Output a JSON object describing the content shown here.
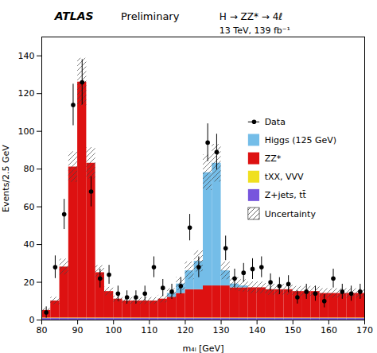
{
  "chart_data": {
    "type": "bar",
    "stacked": true,
    "annotations": [
      "ATLAS",
      "Preliminary",
      "H → ZZ* → 4ℓ",
      "13 TeV, 139 fb⁻¹"
    ],
    "x_label": "m₄ₗ [GeV]",
    "y_label": "Events/2.5 GeV",
    "bins": [
      80,
      82.5,
      85,
      87.5,
      90,
      92.5,
      95,
      97.5,
      100,
      102.5,
      105,
      107.5,
      110,
      112.5,
      115,
      117.5,
      120,
      122.5,
      125,
      127.5,
      130,
      132.5,
      135,
      137.5,
      140,
      142.5,
      145,
      147.5,
      150,
      152.5,
      155,
      157.5,
      160,
      162.5,
      165,
      167.5,
      170
    ],
    "series": [
      {
        "name": "Data",
        "type": "scatter",
        "marker": "circle",
        "x": [
          81.25,
          83.75,
          86.25,
          88.75,
          91.25,
          93.75,
          96.25,
          98.75,
          101.25,
          103.75,
          106.25,
          108.75,
          111.25,
          113.75,
          116.25,
          118.75,
          121.25,
          123.75,
          126.25,
          128.75,
          131.25,
          133.75,
          136.25,
          138.75,
          141.25,
          143.75,
          146.25,
          148.75,
          151.25,
          153.75,
          156.25,
          158.75,
          161.25,
          163.75,
          166.25,
          168.75
        ],
        "values": [
          4,
          28,
          56,
          114,
          126,
          68,
          22,
          24,
          14,
          12,
          12,
          14,
          28,
          17,
          15,
          18,
          49,
          28,
          94,
          89,
          38,
          22,
          25,
          27,
          28,
          20,
          18,
          19,
          12,
          15,
          14,
          10,
          22,
          15,
          14,
          15
        ],
        "errors": [
          3,
          6,
          8,
          11,
          12,
          8,
          5,
          5,
          4,
          3.5,
          3.5,
          4,
          5.5,
          4.5,
          4,
          4.5,
          7,
          5.5,
          10,
          9.5,
          6.5,
          5,
          5,
          5.5,
          5.5,
          4.5,
          4.5,
          4.5,
          3.5,
          4,
          4,
          3.5,
          5,
          4,
          4,
          4
        ]
      },
      {
        "name": "Higgs (125 GeV)",
        "color": "#74bde8",
        "values": [
          0,
          0,
          0,
          0,
          0,
          0,
          0,
          0,
          0,
          0,
          0,
          0,
          0,
          0,
          2,
          5,
          10,
          15,
          60,
          65,
          8,
          2,
          1,
          0,
          0,
          0,
          0,
          0,
          0,
          0,
          0,
          0,
          0,
          0,
          0,
          0
        ]
      },
      {
        "name": "ZZ*",
        "color": "#dd1111",
        "values": [
          4,
          9,
          27,
          80,
          125,
          82,
          24,
          14,
          10,
          9,
          9,
          9,
          9,
          10,
          11,
          13,
          15,
          15,
          17,
          17,
          17,
          16,
          16,
          16,
          16,
          15,
          15,
          15,
          14,
          14,
          14,
          13,
          13,
          13,
          13,
          13
        ]
      },
      {
        "name": "tXX, VVV",
        "color": "#f0e020",
        "values": [
          0.3,
          0.3,
          0.3,
          0.3,
          0.3,
          0.3,
          0.3,
          0.3,
          0.3,
          0.3,
          0.3,
          0.3,
          0.3,
          0.3,
          0.3,
          0.3,
          0.3,
          0.3,
          0.3,
          0.3,
          0.3,
          0.3,
          0.3,
          0.3,
          0.3,
          0.3,
          0.3,
          0.3,
          0.3,
          0.3,
          0.3,
          0.3,
          0.3,
          0.3,
          0.3,
          0.3
        ]
      },
      {
        "name": "Z+jets, tt̄",
        "color": "#7755dd",
        "values": [
          0.8,
          0.8,
          0.8,
          0.8,
          0.8,
          0.8,
          0.8,
          0.8,
          0.8,
          0.8,
          0.8,
          0.8,
          0.8,
          0.8,
          0.8,
          0.8,
          0.8,
          0.8,
          0.8,
          0.8,
          0.8,
          0.8,
          0.8,
          0.8,
          0.8,
          0.8,
          0.8,
          0.8,
          0.8,
          0.8,
          0.8,
          0.8,
          0.8,
          0.8,
          0.8,
          0.8
        ]
      },
      {
        "name": "Uncertainty",
        "type": "band",
        "low": [
          4.08,
          8.08,
          23.885,
          72.99,
          113.49,
          74.79,
          21.335,
          12.835,
          9.435,
          8.282,
          8.282,
          8.282,
          8.282,
          9.102,
          11.562,
          15.662,
          21.402,
          25.502,
          68.728,
          73.128,
          21.402,
          15.662,
          14.842,
          14.022,
          14.022,
          13.202,
          13.202,
          13.202,
          12.382,
          12.382,
          12.382,
          11.562,
          11.562,
          11.562,
          11.562,
          11.562
        ],
        "high": [
          6.12,
          12.12,
          32.315,
          89.21,
          138.71,
          91.41,
          28.865,
          17.365,
          12.765,
          11.918,
          11.918,
          11.918,
          11.918,
          13.098,
          16.638,
          22.538,
          30.798,
          36.698,
          87.472,
          93.072,
          30.798,
          22.538,
          21.358,
          20.178,
          20.178,
          18.998,
          18.998,
          18.998,
          17.818,
          17.818,
          17.818,
          16.638,
          16.638,
          16.638,
          16.638,
          16.638
        ]
      }
    ],
    "xlim": [
      80,
      170
    ],
    "ylim": [
      0,
      150
    ],
    "xticks": [
      80,
      90,
      100,
      110,
      120,
      130,
      140,
      150,
      160,
      170
    ],
    "yticks": [
      0,
      20,
      40,
      60,
      80,
      100,
      120,
      140
    ],
    "legend": "upper right",
    "grid": false
  }
}
